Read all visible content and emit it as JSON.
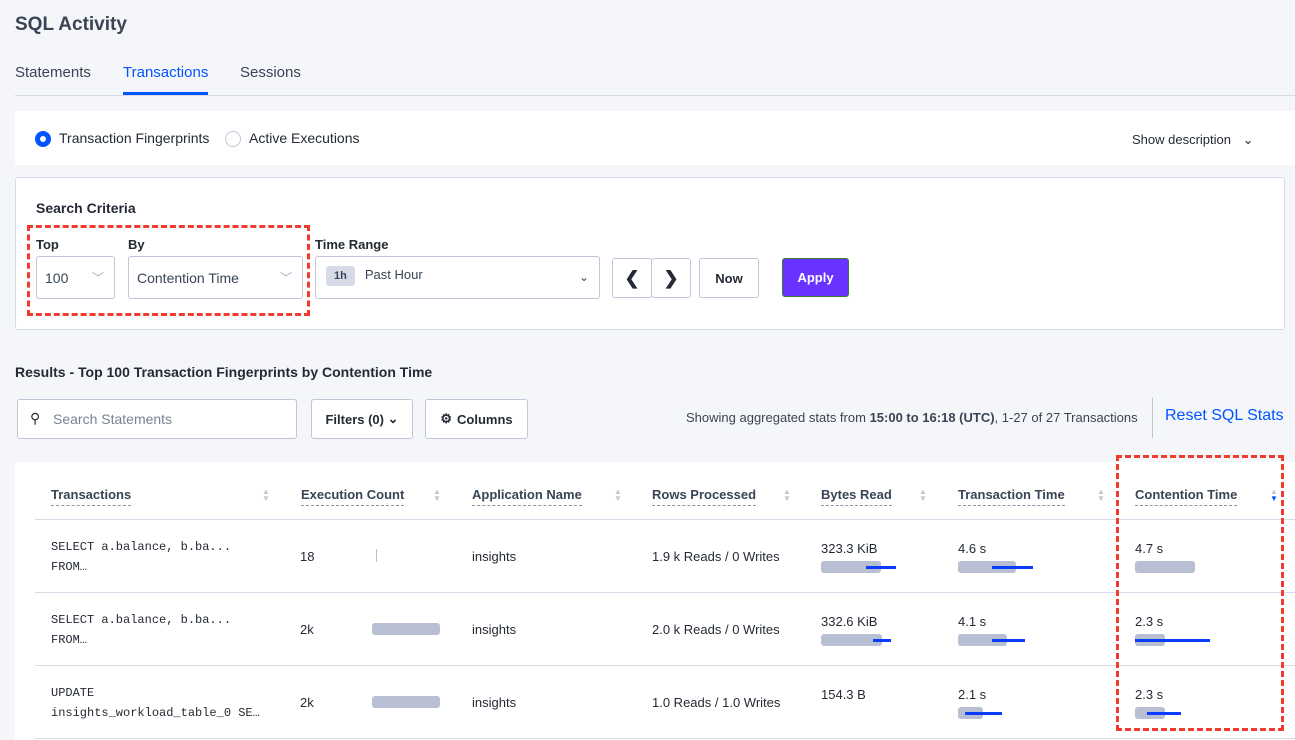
{
  "page_title": "SQL Activity",
  "tabs": [
    {
      "label": "Statements"
    },
    {
      "label": "Transactions",
      "active": true
    },
    {
      "label": "Sessions"
    }
  ],
  "view_options": {
    "fingerprints": "Transaction Fingerprints",
    "active": "Active Executions",
    "selected": "Transaction Fingerprints",
    "show_description": "Show description"
  },
  "search": {
    "title": "Search Criteria",
    "top_label": "Top",
    "top_value": "100",
    "by_label": "By",
    "by_value": "Contention Time",
    "time_label": "Time Range",
    "time_badge": "1h",
    "time_value": "Past Hour",
    "now": "Now",
    "apply": "Apply"
  },
  "results": {
    "title": "Results - Top 100 Transaction Fingerprints by Contention Time",
    "search_placeholder": "Search Statements",
    "filters": "Filters (0)",
    "columns": "Columns",
    "stats_prefix": "Showing aggregated stats from ",
    "stats_range": "15:00 to 16:18 (UTC)",
    "stats_suffix": ", 1-27 of 27 Transactions",
    "reset": "Reset SQL Stats"
  },
  "colors": {
    "accent": "#0055ff",
    "apply": "#6933ff",
    "highlight": "#f03b2d"
  },
  "table": {
    "headers": [
      "Transactions",
      "Execution Count",
      "Application Name",
      "Rows Processed",
      "Bytes Read",
      "Transaction Time",
      "Contention Time"
    ],
    "sorted_by": "Contention Time",
    "sort_direction": "descending",
    "rows": [
      {
        "txn1": "SELECT a.balance, b.ba...",
        "txn2": "FROM…",
        "exec": "18",
        "exec_bar": 0.0,
        "app": "insights",
        "rows": "1.9 k Reads / 0 Writes",
        "bytes": "323.3 KiB",
        "bytes_bar": {
          "mean": 0.75,
          "dev_from": 0.56,
          "dev_to": 0.94
        },
        "time": "4.6 s",
        "time_bar": {
          "mean": 0.73,
          "dev_from": 0.43,
          "dev_to": 0.94
        },
        "cont": "4.7 s",
        "cont_bar": {
          "mean": 0.75,
          "dev_from": 0,
          "dev_to": 0
        }
      },
      {
        "txn1": "SELECT a.balance, b.ba...",
        "txn2": "FROM…",
        "exec": "2k",
        "exec_bar": 0.85,
        "app": "insights",
        "rows": "2.0 k Reads / 0 Writes",
        "bytes": "332.6 KiB",
        "bytes_bar": {
          "mean": 0.76,
          "dev_from": 0.65,
          "dev_to": 0.88
        },
        "time": "4.1 s",
        "time_bar": {
          "mean": 0.61,
          "dev_from": 0.42,
          "dev_to": 0.84
        },
        "cont": "2.3 s",
        "cont_bar": {
          "mean": 0.37,
          "dev_from": 0,
          "dev_to": 0.94
        }
      },
      {
        "txn1": "UPDATE",
        "txn2": "insights_workload_table_0 SE…",
        "exec": "2k",
        "exec_bar": 0.85,
        "app": "insights",
        "rows": "1.0 Reads / 1.0 Writes",
        "bytes": "154.3 B",
        "bytes_bar": {
          "mean": 0,
          "dev_from": 0,
          "dev_to": 0
        },
        "time": "2.1 s",
        "time_bar": {
          "mean": 0.31,
          "dev_from": 0.09,
          "dev_to": 0.55
        },
        "cont": "2.3 s",
        "cont_bar": {
          "mean": 0.37,
          "dev_from": 0.15,
          "dev_to": 0.58
        }
      }
    ]
  }
}
